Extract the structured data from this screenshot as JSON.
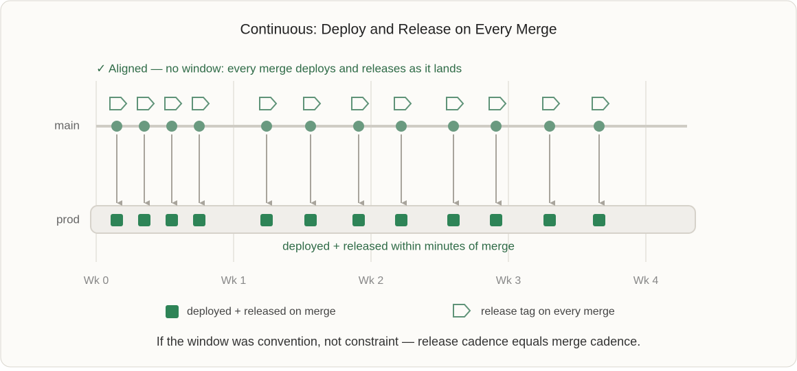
{
  "chart_data": {
    "type": "timeline",
    "title": "Continuous: Deploy and Release on Every Merge",
    "annotation": "✓ Aligned — no window: every merge deploys and releases as it lands",
    "lanes": [
      "main",
      "prod"
    ],
    "x": [
      0.15,
      0.35,
      0.55,
      0.75,
      1.24,
      1.56,
      1.91,
      2.22,
      2.6,
      2.91,
      3.3,
      3.66
    ],
    "xlim": [
      0,
      4.3
    ],
    "xticks": [
      {
        "value": 0,
        "label": "Wk 0"
      },
      {
        "value": 1,
        "label": "Wk 1"
      },
      {
        "value": 2,
        "label": "Wk 2"
      },
      {
        "value": 3,
        "label": "Wk 3"
      },
      {
        "value": 4,
        "label": "Wk 4"
      }
    ],
    "grid": true,
    "prod_note": "deployed + released within minutes of merge",
    "legend": [
      {
        "name": "deployed + released on merge",
        "color": "#2e8457"
      },
      {
        "name": "release tag on every merge",
        "color": "#5f9378"
      }
    ],
    "footnote": "If the window was convention, not constraint — release cadence equals merge cadence."
  }
}
